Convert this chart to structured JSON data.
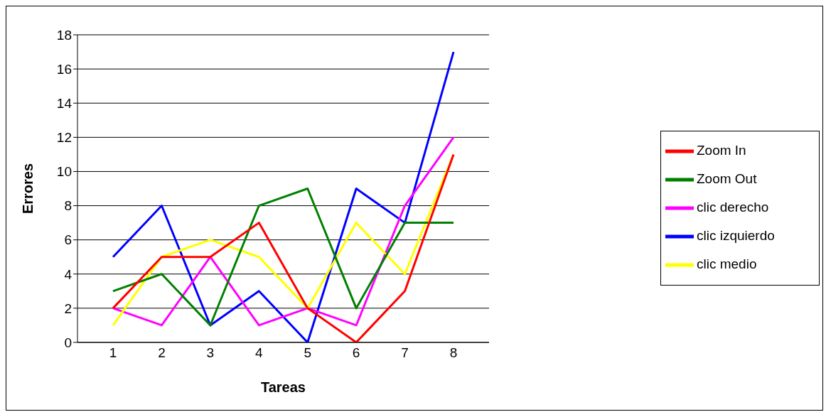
{
  "chart_data": {
    "type": "line",
    "xlabel": "Tareas",
    "ylabel": "Errores",
    "categories": [
      "1",
      "2",
      "3",
      "4",
      "5",
      "6",
      "7",
      "8"
    ],
    "series": [
      {
        "name": "clic izquierdo",
        "color": "#0000ff",
        "values": [
          5,
          8,
          1,
          3,
          0,
          9,
          7,
          17
        ]
      },
      {
        "name": "clic derecho",
        "color": "#ff00ff",
        "values": [
          2,
          1,
          5,
          1,
          2,
          1,
          8,
          12
        ]
      },
      {
        "name": "clic medio",
        "color": "#ffff00",
        "values": [
          1,
          5,
          6,
          5,
          2,
          7,
          4,
          11
        ]
      },
      {
        "name": "Zoom Out",
        "color": "#008000",
        "values": [
          3,
          4,
          1,
          8,
          9,
          2,
          7,
          7
        ]
      },
      {
        "name": "Zoom In",
        "color": "#ff0000",
        "values": [
          2,
          5,
          5,
          7,
          2,
          0,
          3,
          11
        ]
      }
    ],
    "ylim": [
      0,
      18
    ],
    "yticks": [
      0,
      2,
      4,
      6,
      8,
      10,
      12,
      14,
      16,
      18
    ],
    "grid": "y",
    "legend": "right"
  }
}
